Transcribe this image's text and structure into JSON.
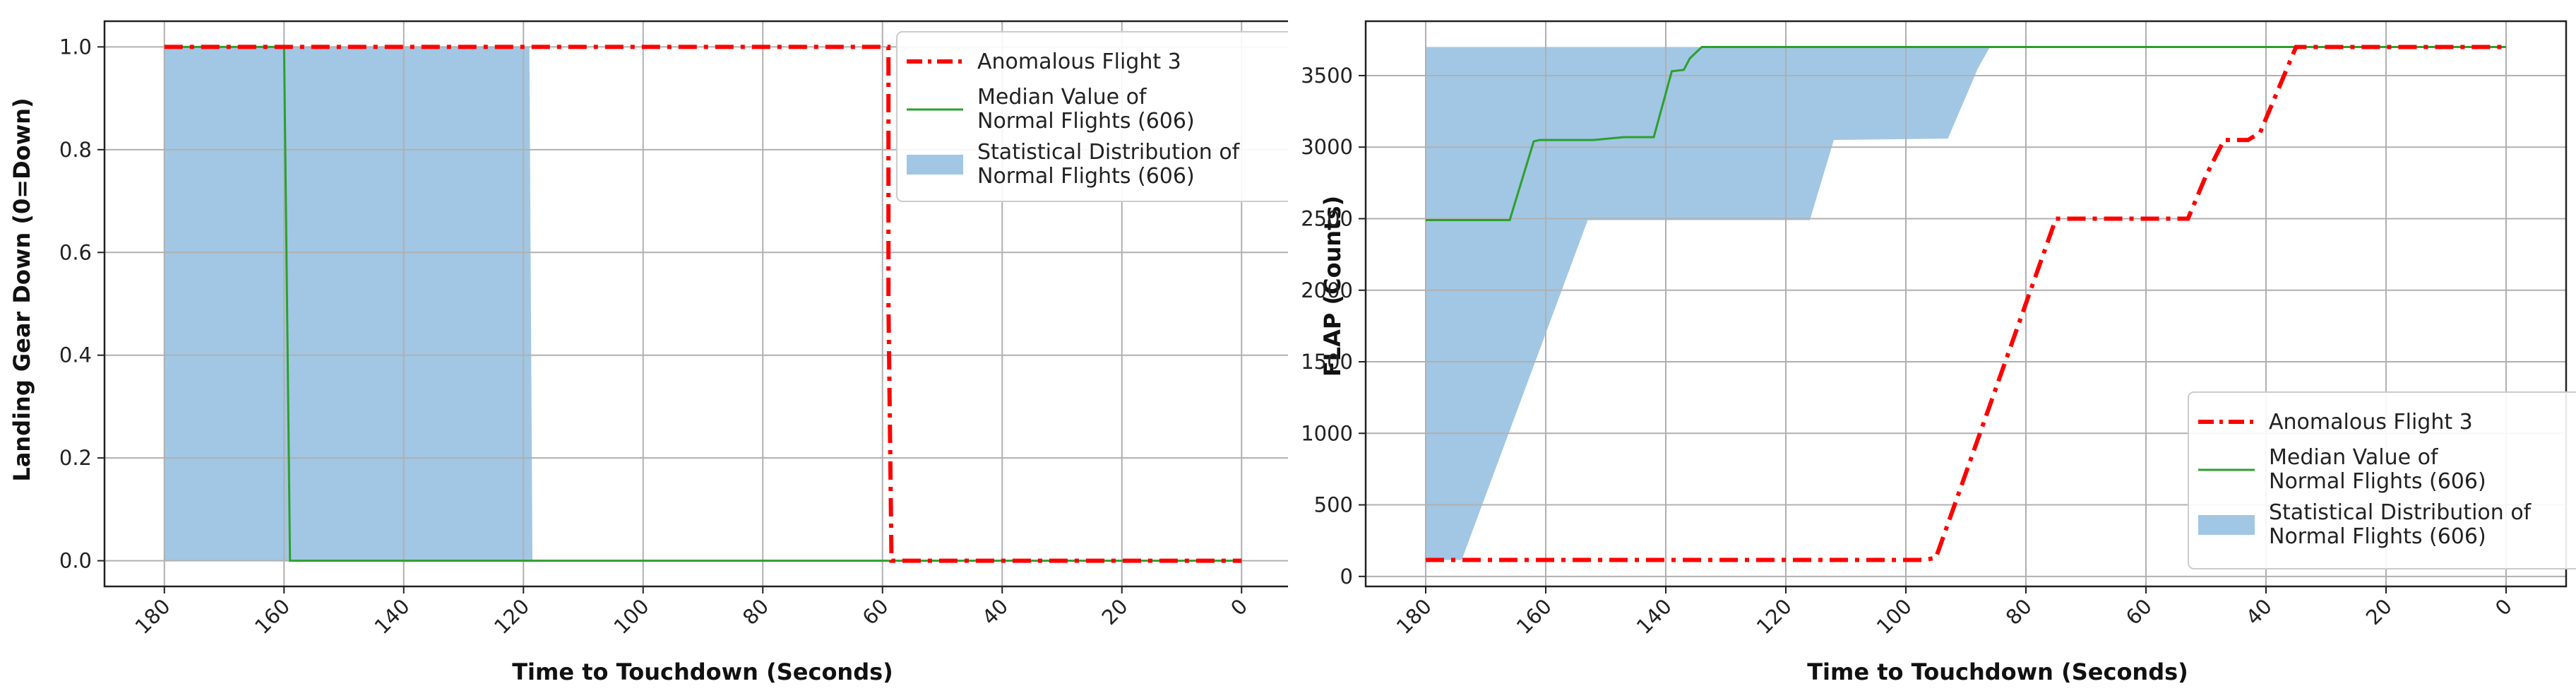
{
  "chart_data": [
    {
      "type": "line",
      "title": "",
      "xlabel": "Time to Touchdown (Seconds)",
      "ylabel": "Landing Gear Down (0=Down)",
      "xlim": [
        190,
        -10
      ],
      "ylim": [
        -0.05,
        1.05
      ],
      "x_ticks": [
        180,
        160,
        140,
        120,
        100,
        80,
        60,
        40,
        20,
        0
      ],
      "x_tick_labels": [
        "180",
        "160",
        "140",
        "120",
        "100",
        "80",
        "60",
        "40",
        "20",
        "0"
      ],
      "y_ticks": [
        0.0,
        0.2,
        0.4,
        0.6,
        0.8,
        1.0
      ],
      "y_tick_labels": [
        "0.0",
        "0.2",
        "0.4",
        "0.6",
        "0.8",
        "1.0"
      ],
      "grid": true,
      "legend_position": "top-right",
      "series": [
        {
          "name": "Anomalous Flight 3",
          "style": "dash-dot",
          "color": "#ff0000",
          "x": [
            180,
            59,
            59,
            58.5,
            0
          ],
          "y": [
            1,
            1,
            0.5,
            0,
            0
          ]
        },
        {
          "name": "Median Value of Normal Flights (606)",
          "style": "solid",
          "color": "#2ca02c",
          "x": [
            180,
            160,
            159,
            0
          ],
          "y": [
            1,
            1,
            0,
            0
          ]
        }
      ],
      "band": {
        "name": "Statistical Distribution of Normal Flights (606)",
        "color": "#8ab9dd",
        "x": [
          180,
          119,
          118.5,
          0
        ],
        "lower": [
          0,
          0,
          0,
          0
        ],
        "upper": [
          1,
          1,
          0,
          0
        ]
      }
    },
    {
      "type": "line",
      "title": "",
      "xlabel": "Time to Touchdown (Seconds)",
      "ylabel": "FLAP (Counts)",
      "xlim": [
        190,
        -10
      ],
      "ylim": [
        -70,
        3880
      ],
      "x_ticks": [
        180,
        160,
        140,
        120,
        100,
        80,
        60,
        40,
        20,
        0
      ],
      "x_tick_labels": [
        "180",
        "160",
        "140",
        "120",
        "100",
        "80",
        "60",
        "40",
        "20",
        "0"
      ],
      "y_ticks": [
        0,
        500,
        1000,
        1500,
        2000,
        2500,
        3000,
        3500
      ],
      "y_tick_labels": [
        "0",
        "500",
        "1000",
        "1500",
        "2000",
        "2500",
        "3000",
        "3500"
      ],
      "grid": true,
      "legend_position": "bottom-right",
      "series": [
        {
          "name": "Anomalous Flight 3",
          "style": "dash-dot",
          "color": "#ff0000",
          "x": [
            180,
            97,
            95,
            75,
            73,
            53,
            50,
            47,
            43,
            41,
            35,
            0
          ],
          "y": [
            115,
            115,
            130,
            2500,
            2500,
            2500,
            2800,
            3050,
            3050,
            3100,
            3700,
            3700
          ]
        },
        {
          "name": "Median Value of Normal Flights (606)",
          "style": "solid",
          "color": "#2ca02c",
          "x": [
            180,
            166,
            162,
            161,
            152,
            147,
            142,
            139,
            137,
            136,
            134,
            0
          ],
          "y": [
            2490,
            2490,
            3040,
            3050,
            3050,
            3070,
            3070,
            3530,
            3540,
            3620,
            3700,
            3700
          ]
        }
      ],
      "band": {
        "name": "Statistical Distribution of Normal Flights (606)",
        "color": "#8ab9dd",
        "x": [
          180,
          175,
          174,
          153,
          116,
          112,
          93,
          88,
          86,
          0
        ],
        "lower": [
          115,
          115,
          115,
          2490,
          2490,
          3050,
          3060,
          3550,
          3700,
          3700
        ],
        "upper": [
          3700,
          3700,
          3700,
          3700,
          3700,
          3700,
          3700,
          3700,
          3700,
          3700
        ]
      }
    }
  ]
}
